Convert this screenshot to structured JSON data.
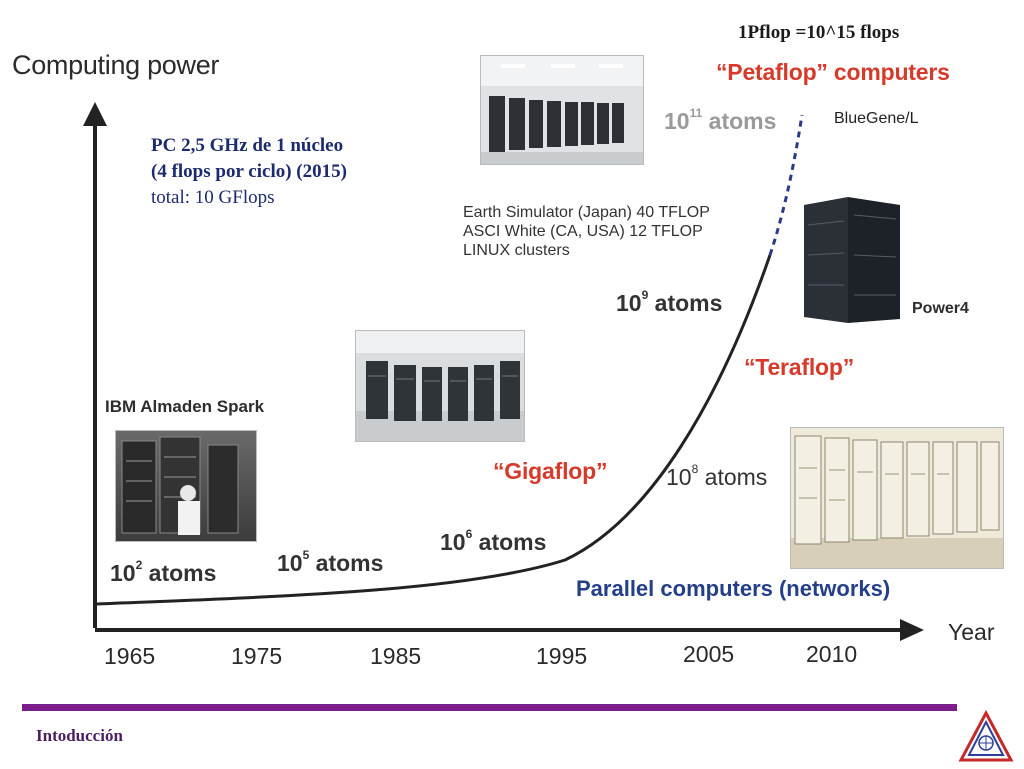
{
  "title": "Computing power",
  "top_note": "1Pflop =10^15 flops",
  "pc_note": {
    "line1": "PC 2,5 GHz de 1 núcleo",
    "line2": "(4 flops por ciclo) (2015)",
    "line3": "total: 10 GFlops"
  },
  "axis": {
    "x_label": "Year",
    "years": [
      "1965",
      "1975",
      "1985",
      "1995",
      "2005",
      "2010"
    ]
  },
  "milestones": {
    "atoms_1e2": {
      "base": "10",
      "exp": "2",
      "unit": "atoms"
    },
    "atoms_1e5": {
      "base": "10",
      "exp": "5",
      "unit": "atoms"
    },
    "atoms_1e6": {
      "base": "10",
      "exp": "6",
      "unit": "atoms"
    },
    "atoms_1e8": {
      "base": "10",
      "exp": "8",
      "unit": "atoms"
    },
    "atoms_1e9": {
      "base": "10",
      "exp": "9",
      "unit": "atoms"
    },
    "atoms_1e11": {
      "base": "10",
      "exp": "11",
      "unit": "atoms"
    }
  },
  "eras": {
    "gigaflop": "“Gigaflop”",
    "teraflop": "“Teraflop”",
    "petaflop": "“Petaflop” computers"
  },
  "machines": {
    "ibm": "IBM Almaden Spark",
    "bluegene": "BlueGene/L",
    "power4": "Power4",
    "earth_lines": [
      "Earth Simulator (Japan) 40 TFLOP",
      "ASCI White (CA, USA) 12 TFLOP",
      "LINUX clusters"
    ]
  },
  "parallel": "Parallel computers (networks)",
  "footer": "Intoducción",
  "colors": {
    "era": "#d63a2a",
    "parallel": "#243f8a",
    "footer_rule": "#7b1e8c",
    "pc_note": "#1c2a6e"
  },
  "icons": {
    "logo": "metrology-triangle-logo"
  }
}
